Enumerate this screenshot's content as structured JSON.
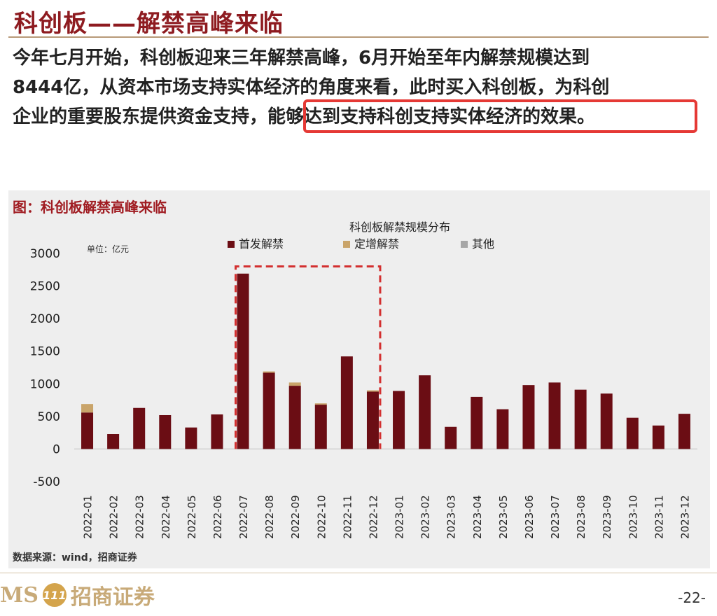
{
  "page": {
    "title": "科创板——解禁高峰来临",
    "body_lines": [
      "今年七月开始，科创板迎来三年解禁高峰，6月开始至年内解禁规模达到",
      "8444亿，从资本市场支持实体经济的角度来看，此时买入科创板，为科创",
      "企业的重要股东提供资金支持，"
    ],
    "highlight_text": "能够达到支持科创支持实体经济的效果。",
    "figure_caption": "图：科创板解禁高峰来临",
    "source": "数据来源：wind，招商证券",
    "logo_text": "MS",
    "logo_mark": "111",
    "logo_cn": "招商证券",
    "page_number": "-22-",
    "highlight_color": "#e53935"
  },
  "chart_data": {
    "type": "bar",
    "stacked": true,
    "title": "科创板解禁规模分布",
    "unit_label": "单位：亿元",
    "ylim": [
      -500,
      3000
    ],
    "yticks": [
      -500,
      0,
      500,
      1000,
      1500,
      2000,
      2500,
      3000
    ],
    "legend_position": "top",
    "categories": [
      "2022-01",
      "2022-02",
      "2022-03",
      "2022-04",
      "2022-05",
      "2022-06",
      "2022-07",
      "2022-08",
      "2022-09",
      "2022-10",
      "2022-11",
      "2022-12",
      "2023-01",
      "2023-02",
      "2023-03",
      "2023-04",
      "2023-05",
      "2023-06",
      "2023-07",
      "2023-08",
      "2023-09",
      "2023-10",
      "2023-11",
      "2023-12"
    ],
    "series": [
      {
        "name": "首发解禁",
        "color": "#6b0d14",
        "values": [
          560,
          230,
          630,
          520,
          330,
          530,
          2690,
          1170,
          970,
          680,
          1420,
          880,
          890,
          1130,
          340,
          800,
          610,
          980,
          1020,
          910,
          850,
          480,
          360,
          540
        ]
      },
      {
        "name": "定增解禁",
        "color": "#c9a46a",
        "values": [
          130,
          0,
          0,
          0,
          0,
          0,
          0,
          20,
          50,
          20,
          0,
          20,
          0,
          0,
          0,
          0,
          0,
          0,
          0,
          0,
          0,
          0,
          0,
          0
        ]
      },
      {
        "name": "其他",
        "color": "#a6a6a6",
        "values": [
          0,
          0,
          0,
          0,
          0,
          0,
          0,
          0,
          0,
          0,
          0,
          0,
          0,
          0,
          0,
          0,
          0,
          0,
          0,
          0,
          0,
          0,
          0,
          0
        ]
      }
    ],
    "highlight_range": [
      "2022-07",
      "2022-12"
    ],
    "highlight_color": "#d32f2f"
  }
}
